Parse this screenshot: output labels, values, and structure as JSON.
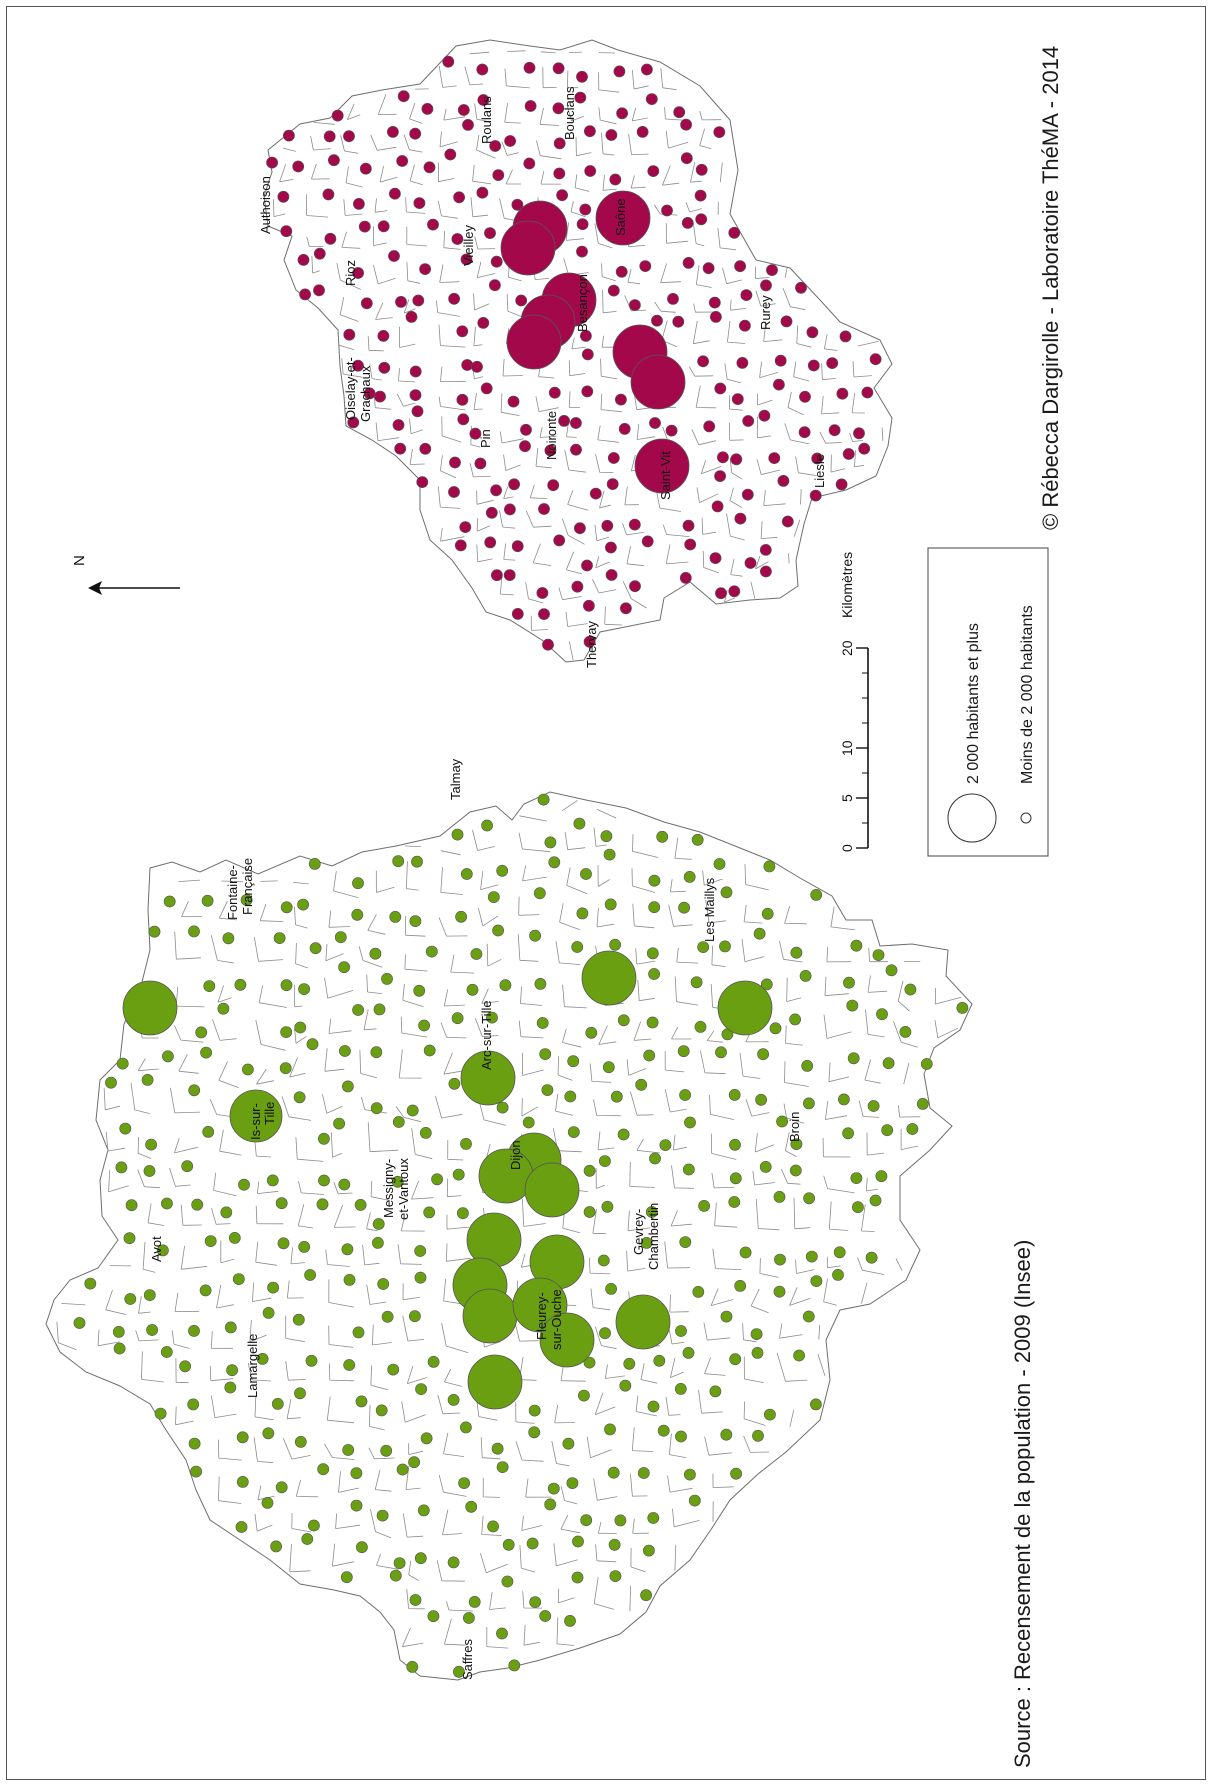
{
  "source": "Source : Recensement de la population - 2009 (Insee)",
  "credit": "© Rébecca Dargirolle - Laboratoire ThéMA - 2014",
  "north_label": "N",
  "scale": {
    "unit": "Kilomètres",
    "ticks": [
      "0",
      "5",
      "10",
      "20"
    ]
  },
  "legend": {
    "large": "2 000 habitants et plus",
    "small": "Moins de 2 000 habitants"
  },
  "colors": {
    "dijon": "#6a9f12",
    "besancon": "#a3094a",
    "outline": "#6e6e6e"
  },
  "dijon_map": {
    "place_labels": {
      "talmay": "Talmay",
      "fontaine": [
        "Fontaine-",
        "Française"
      ],
      "les_maillys": "Les Maillys",
      "arc": "Arc-sur-Tille",
      "is": [
        "Is-sur-",
        "Tille"
      ],
      "messigny": [
        "Messigny-",
        "et-Vantoux"
      ],
      "dijon": "Dijon",
      "broin": "Broin",
      "avot": "Avot",
      "gevrey": [
        "Gevrey-",
        "Chambertin"
      ],
      "fleurey": [
        "Fleurey-",
        "sur-Ouche"
      ],
      "lamargelle": "Lamargelle",
      "saffres": "Saffres"
    }
  },
  "besancon_map": {
    "place_labels": {
      "rougemont": "Roulans",
      "bouclans": "Bouclans",
      "authoison": "Authoison",
      "saone": "Saône",
      "vieilley": "Vieilley",
      "rioz": "Rioz",
      "besancon": "Besançon",
      "rurey": "Rurey",
      "oiselay": [
        "Oiselay-et-",
        "Grachaux"
      ],
      "pin": "Pin",
      "noironte": "Noironte",
      "saint_vit": "Saint-Vit",
      "liesle": "Liesle",
      "thervay": "Thervay"
    }
  }
}
